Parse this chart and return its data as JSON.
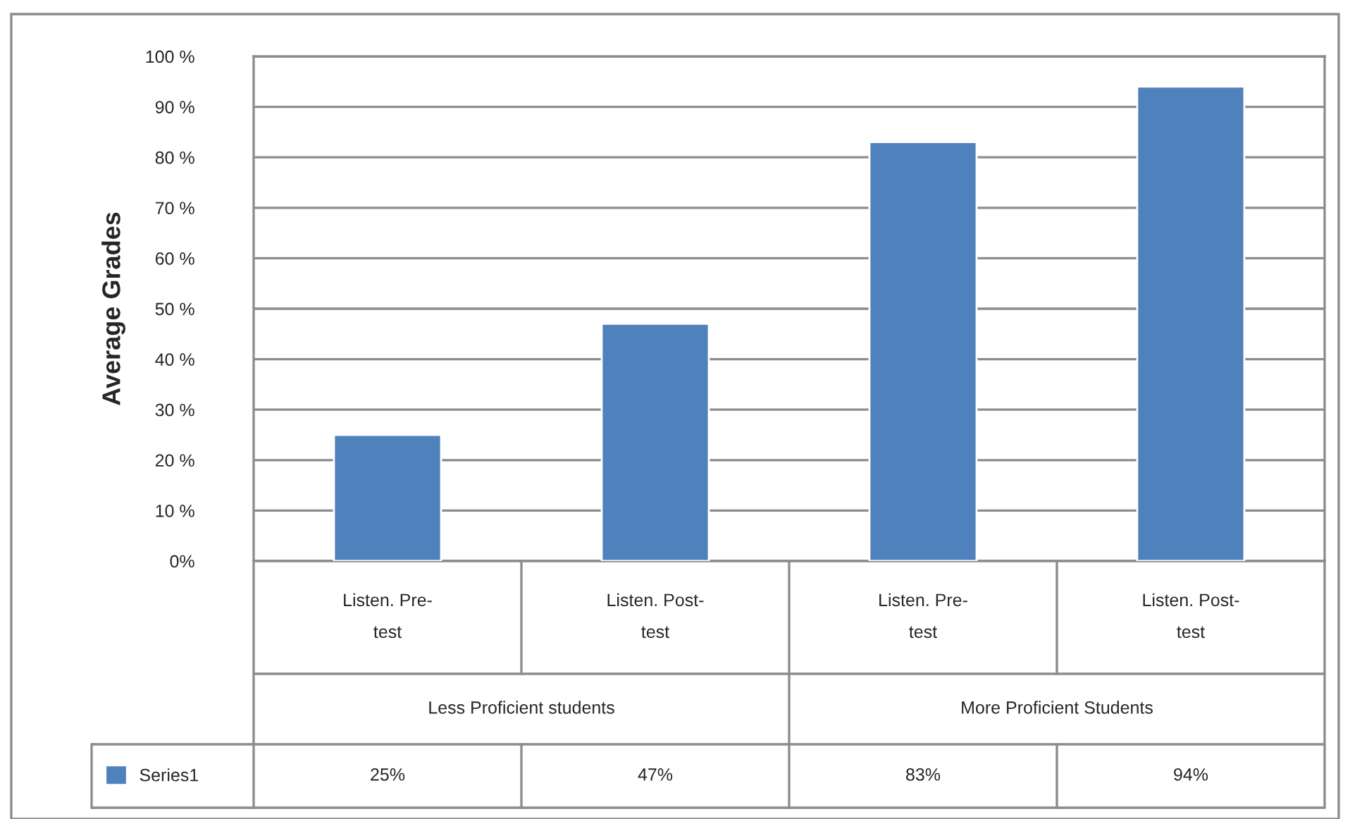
{
  "chart_data": {
    "type": "bar",
    "ylabel": "Average Grades",
    "categories": [
      "Listen. Pre-\ntest",
      "Listen. Post-\ntest",
      "Listen. Pre-\ntest",
      "Listen. Post-\ntest"
    ],
    "series": [
      {
        "name": "Series1",
        "color": "#4f81bd",
        "values": [
          25,
          47,
          83,
          94
        ],
        "value_labels": [
          "25%",
          "47%",
          "83%",
          "94%"
        ]
      }
    ],
    "annotations": [
      "Less Proficient students",
      "More Proficient Students"
    ],
    "ylim": [
      0,
      100
    ],
    "yticks": [
      {
        "value": 0,
        "label": "0%"
      },
      {
        "value": 10,
        "label": "10 %"
      },
      {
        "value": 20,
        "label": "20 %"
      },
      {
        "value": 30,
        "label": "30 %"
      },
      {
        "value": 40,
        "label": "40 %"
      },
      {
        "value": 50,
        "label": "50 %"
      },
      {
        "value": 60,
        "label": "60 %"
      },
      {
        "value": 70,
        "label": "70 %"
      },
      {
        "value": 80,
        "label": "80 %"
      },
      {
        "value": 90,
        "label": "90 %"
      },
      {
        "value": 100,
        "label": "100 %"
      }
    ],
    "grid": "y",
    "legend": "bottom left"
  }
}
